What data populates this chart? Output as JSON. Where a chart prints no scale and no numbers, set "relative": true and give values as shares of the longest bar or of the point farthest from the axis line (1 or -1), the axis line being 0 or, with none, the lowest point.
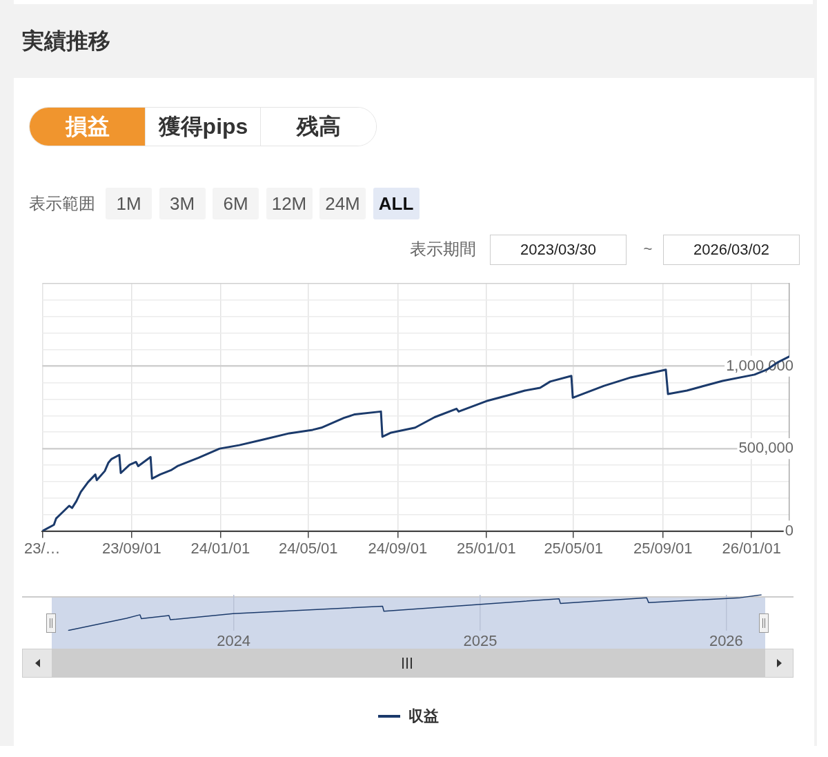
{
  "chart_data": [
    {
      "type": "line",
      "title": "実績推移",
      "annotations": [
        "損益",
        "獲得pips",
        "残高",
        "表示範囲",
        "1M",
        "3M",
        "6M",
        "12M",
        "24M",
        "ALL",
        "表示期間",
        "2023/03/30",
        "~",
        "2026/03/02"
      ],
      "x": [
        "2023-05-01",
        "2023-05-17",
        "2023-05-20",
        "2023-05-27",
        "2023-06-07",
        "2023-06-11",
        "2023-06-17",
        "2023-06-23",
        "2023-07-03",
        "2023-07-13",
        "2023-07-15",
        "2023-07-26",
        "2023-07-31",
        "2023-08-04",
        "2023-08-15",
        "2023-08-17",
        "2023-08-29",
        "2023-09-07",
        "2023-09-10",
        "2023-09-27",
        "2023-09-29",
        "2023-10-10",
        "2023-10-25",
        "2023-11-03",
        "2023-12-02",
        "2023-12-31",
        "2024-01-27",
        "2024-02-29",
        "2024-04-05",
        "2024-05-07",
        "2024-05-19",
        "2024-06-19",
        "2024-07-04",
        "2024-08-09",
        "2024-08-11",
        "2024-08-23",
        "2024-09-25",
        "2024-10-22",
        "2024-11-21",
        "2024-11-24",
        "2025-01-01",
        "2025-02-02",
        "2025-02-23",
        "2025-03-16",
        "2025-03-30",
        "2025-04-28",
        "2025-04-30",
        "2025-06-12",
        "2025-07-19",
        "2025-09-05",
        "2025-09-08",
        "2025-10-04",
        "2025-11-22",
        "2026-01-05",
        "2026-01-22",
        "2026-02-05",
        "2026-02-22"
      ],
      "series": [
        {
          "name": "収益",
          "color": "#1b3a6b",
          "values": [
            0,
            38000,
            76000,
            106000,
            153000,
            140000,
            182000,
            237000,
            297000,
            343000,
            309000,
            364000,
            415000,
            436000,
            462000,
            352000,
            402000,
            419000,
            394000,
            449000,
            318000,
            343000,
            369000,
            394000,
            445000,
            500000,
            521000,
            555000,
            593000,
            614000,
            627000,
            686000,
            708000,
            725000,
            572000,
            597000,
            627000,
            691000,
            742000,
            725000,
            788000,
            826000,
            852000,
            869000,
            907000,
            941000,
            809000,
            881000,
            932000,
            979000,
            831000,
            852000,
            911000,
            949000,
            979000,
            1021000,
            1059000
          ]
        }
      ],
      "xlim": [
        "2023-05-01",
        "2026-02-22"
      ],
      "xticks": [
        {
          "value": "2023-05-01",
          "label": "23/…"
        },
        {
          "value": "2023-09-01",
          "label": "23/09/01"
        },
        {
          "value": "2024-01-01",
          "label": "24/01/01"
        },
        {
          "value": "2024-05-01",
          "label": "24/05/01"
        },
        {
          "value": "2024-09-01",
          "label": "24/09/01"
        },
        {
          "value": "2025-01-01",
          "label": "25/01/01"
        },
        {
          "value": "2025-05-01",
          "label": "25/05/01"
        },
        {
          "value": "2025-09-01",
          "label": "25/09/01"
        },
        {
          "value": "2026-01-01",
          "label": "26/01/01"
        }
      ],
      "ylim": [
        0,
        1500000
      ],
      "yticks": [
        {
          "value": 0,
          "label": "0"
        },
        {
          "value": 100000,
          "label": null
        },
        {
          "value": 200000,
          "label": null
        },
        {
          "value": 300000,
          "label": null
        },
        {
          "value": 400000,
          "label": null
        },
        {
          "value": 500000,
          "label": "500,000"
        },
        {
          "value": 600000,
          "label": null
        },
        {
          "value": 700000,
          "label": null
        },
        {
          "value": 800000,
          "label": null
        },
        {
          "value": 900000,
          "label": null
        },
        {
          "value": 1000000,
          "label": "1,000,000"
        },
        {
          "value": 1100000,
          "label": null
        },
        {
          "value": 1200000,
          "label": null
        },
        {
          "value": 1300000,
          "label": null
        },
        {
          "value": 1400000,
          "label": null
        },
        {
          "value": 1500000,
          "label": null
        }
      ],
      "grid": true,
      "legend": "bottom",
      "marker": "none"
    },
    {
      "type": "line",
      "relative": true,
      "color": "#1b3a6b",
      "x": [
        "2023-05-01",
        "2023-07-26",
        "2023-08-15",
        "2023-08-17",
        "2023-09-27",
        "2023-09-29",
        "2023-12-31",
        "2024-08-09",
        "2024-08-11",
        "2025-04-28",
        "2025-04-30",
        "2025-09-05",
        "2025-09-08",
        "2026-01-22",
        "2026-02-22"
      ],
      "values": [
        0,
        0.34,
        0.44,
        0.33,
        0.42,
        0.3,
        0.47,
        0.68,
        0.54,
        0.89,
        0.76,
        0.92,
        0.78,
        0.92,
        1
      ],
      "xlim": [
        "2023-04-06",
        "2026-02-28"
      ],
      "xticks": [
        {
          "value": "2024-01-01",
          "label": "2024"
        },
        {
          "value": "2025-01-01",
          "label": "2025"
        },
        {
          "value": "2026-01-01",
          "label": "2026"
        }
      ],
      "grid": "x",
      "tick_labels": "x",
      "marker": "none"
    }
  ]
}
